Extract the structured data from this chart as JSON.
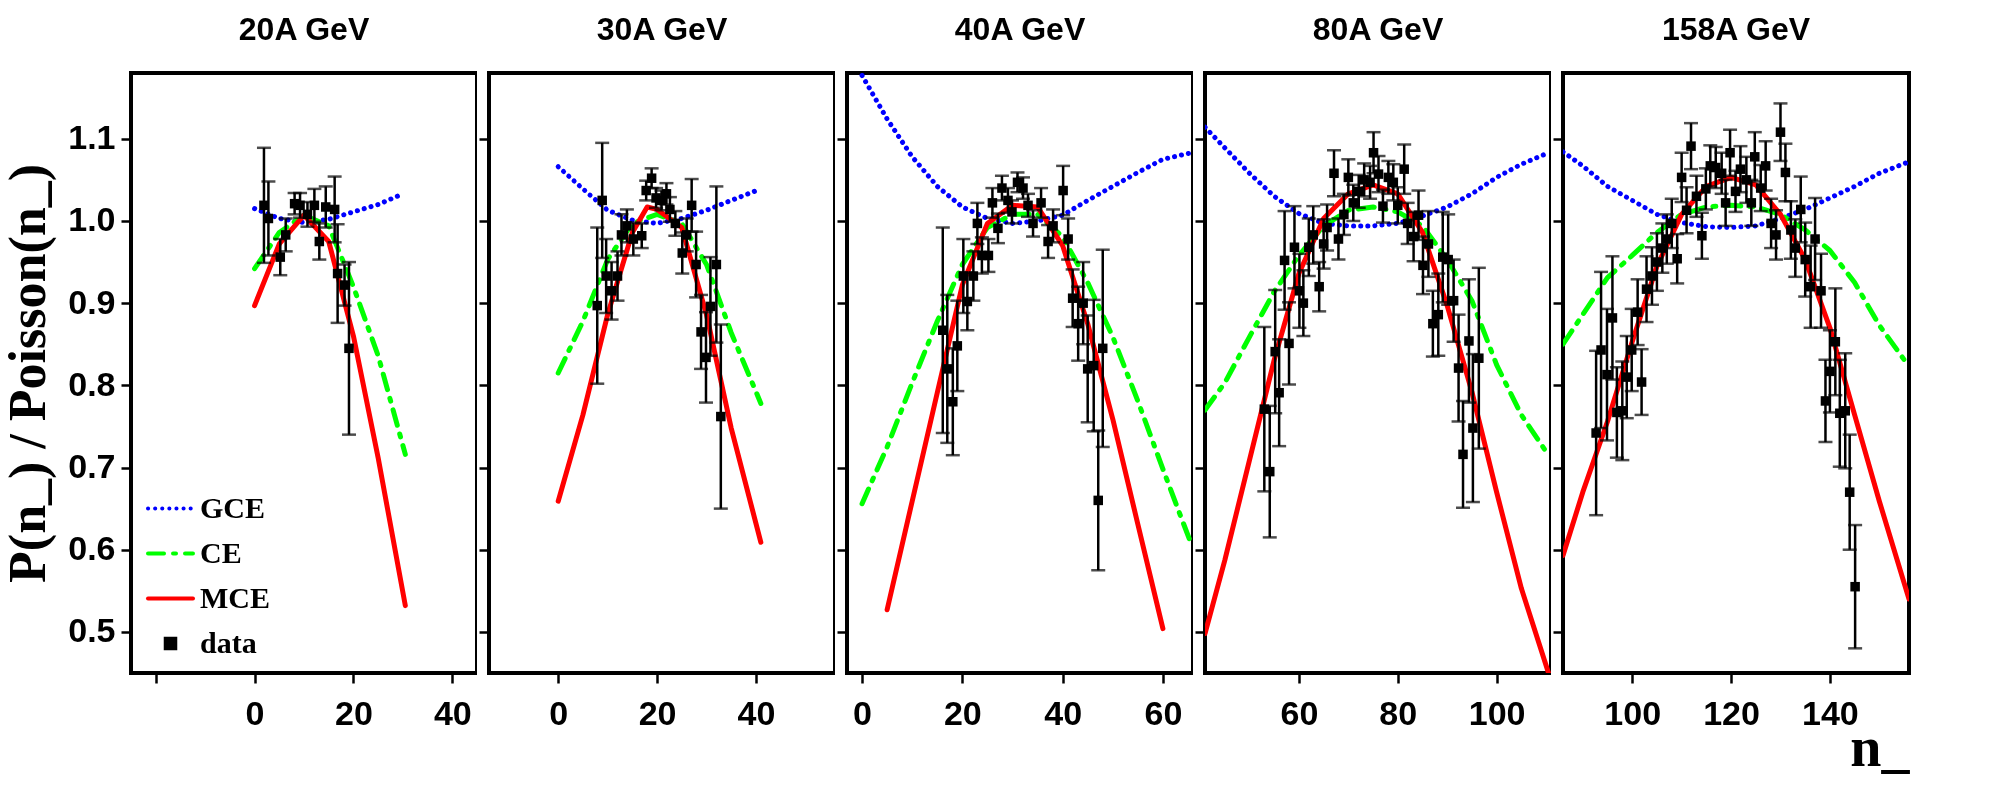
{
  "chart_data": [
    {
      "type": "line",
      "title": "20A GeV",
      "ylabel": "P(n_) / Poisson(n_)",
      "xlim": [
        -25,
        45
      ],
      "xticks": [
        {
          "value": -20,
          "label": null
        },
        0,
        20,
        40
      ],
      "ylim": [
        0.45,
        1.18
      ],
      "yticks": [
        0.5,
        0.6,
        0.7,
        0.8,
        0.9,
        {
          "value": 1.0,
          "label": "1.0"
        },
        1.1
      ],
      "grid": false,
      "legend": "bottom left",
      "series": [
        {
          "name": "GCE",
          "color": "#0000ff",
          "line_style": "dotted",
          "x": [
            0,
            5,
            10,
            15,
            20,
            25,
            30
          ],
          "values": [
            1.015,
            1.003,
            0.998,
            1.002,
            1.011,
            1.02,
            1.033
          ]
        },
        {
          "name": "CE",
          "color": "#00ff00",
          "line_style": "dashed",
          "x": [
            0,
            5,
            10,
            15,
            20,
            25,
            30.5
          ],
          "values": [
            0.942,
            0.986,
            1.007,
            0.994,
            0.92,
            0.836,
            0.716
          ]
        },
        {
          "name": "MCE",
          "color": "#ff0000",
          "line_style": "solid",
          "x": [
            0,
            5,
            10,
            15,
            20,
            25,
            30.5
          ],
          "values": [
            0.897,
            0.972,
            1.007,
            0.975,
            0.86,
            0.712,
            0.532
          ]
        },
        {
          "name": "data",
          "type": "scatter",
          "marker": "square",
          "color": "#000000",
          "x": [
            1.9,
            2.8,
            5.2,
            6.3,
            8.1,
            9.2,
            10.7,
            12.1,
            13.1,
            14.4,
            16.2,
            16.8,
            18.2,
            19.1
          ],
          "values": [
            1.019,
            1.003,
            0.956,
            0.983,
            1.021,
            1.019,
            1.008,
            1.019,
            0.975,
            1.017,
            1.014,
            0.936,
            0.922,
            0.845
          ],
          "errors": [
            0.07,
            0.045,
            0.022,
            0.02,
            0.013,
            0.015,
            0.015,
            0.02,
            0.022,
            0.025,
            0.04,
            0.06,
            0.025,
            0.105
          ]
        }
      ]
    },
    {
      "type": "line",
      "title": "30A GeV",
      "xlim": [
        -14,
        56
      ],
      "xticks": [
        0,
        20,
        40
      ],
      "ylim": [
        0.45,
        1.18
      ],
      "yticks": [
        0.5,
        0.6,
        0.7,
        0.8,
        0.9,
        1,
        1.1
      ],
      "tick_labels": "x",
      "grid": false,
      "series": [
        {
          "color": "#0000ff",
          "line_style": "dotted",
          "x": [
            0,
            5,
            10,
            15,
            20,
            25,
            30,
            35,
            41
          ],
          "values": [
            1.066,
            1.039,
            1.013,
            1.001,
            0.997,
            1.003,
            1.013,
            1.025,
            1.039
          ]
        },
        {
          "color": "#00ff00",
          "line_style": "dashed",
          "x": [
            0,
            5,
            10,
            15,
            20,
            25,
            30,
            35,
            41
          ],
          "values": [
            0.815,
            0.878,
            0.953,
            0.997,
            1.008,
            0.997,
            0.947,
            0.864,
            0.778
          ]
        },
        {
          "color": "#ff0000",
          "line_style": "solid",
          "x": [
            0,
            5,
            10,
            15,
            18,
            20,
            25,
            30,
            35,
            41
          ],
          "values": [
            0.659,
            0.764,
            0.886,
            0.986,
            1.017,
            1.014,
            0.992,
            0.886,
            0.748,
            0.609
          ]
        },
        {
          "type": "scatter",
          "marker": "square",
          "color": "#000000",
          "x": [
            7.9,
            8.9,
            9.7,
            10.8,
            12.0,
            12.8,
            13.9,
            15.2,
            16.9,
            17.8,
            18.9,
            19.8,
            20.9,
            21.9,
            22.6,
            23.7,
            25.1,
            26.0,
            27.0,
            27.9,
            28.9,
            29.9,
            30.8,
            32.0,
            32.9
          ],
          "values": [
            0.897,
            1.025,
            0.933,
            0.915,
            0.933,
            0.983,
            0.994,
            0.978,
            0.982,
            1.037,
            1.052,
            1.028,
            1.025,
            1.033,
            1.014,
            0.997,
            0.961,
            0.983,
            1.019,
            0.947,
            0.865,
            0.834,
            0.896,
            0.947,
            0.762
          ],
          "errors": [
            0.095,
            0.07,
            0.045,
            0.035,
            0.03,
            0.025,
            0.02,
            0.02,
            0.015,
            0.012,
            0.012,
            0.012,
            0.012,
            0.013,
            0.015,
            0.015,
            0.025,
            0.02,
            0.032,
            0.04,
            0.045,
            0.055,
            0.06,
            0.095,
            0.112
          ]
        }
      ]
    },
    {
      "type": "line",
      "title": "40A GeV",
      "xlim": [
        -3,
        66
      ],
      "xticks": [
        0,
        20,
        40,
        60
      ],
      "ylim": [
        0.45,
        1.18
      ],
      "yticks": [
        0.5,
        0.6,
        0.7,
        0.8,
        0.9,
        1,
        1.1
      ],
      "tick_labels": "x",
      "grid": false,
      "series": [
        {
          "color": "#0000ff",
          "line_style": "dotted",
          "x": [
            0,
            5,
            10,
            15,
            20,
            25,
            30,
            35,
            40,
            45,
            50,
            55,
            60,
            65.7
          ],
          "values": [
            1.177,
            1.124,
            1.078,
            1.042,
            1.017,
            1.003,
            0.997,
            1.0,
            1.007,
            1.025,
            1.042,
            1.059,
            1.075,
            1.083
          ]
        },
        {
          "color": "#00ff00",
          "line_style": "dashed",
          "x": [
            0,
            5,
            10,
            15,
            20,
            25,
            30,
            35,
            40,
            45,
            50,
            55,
            60,
            65.7
          ],
          "values": [
            0.656,
            0.725,
            0.803,
            0.878,
            0.947,
            0.992,
            1.008,
            1.008,
            0.981,
            0.925,
            0.859,
            0.781,
            0.698,
            0.606
          ]
        },
        {
          "color": "#ff0000",
          "line_style": "solid",
          "x": [
            5,
            10,
            15,
            20,
            25,
            30,
            35,
            40,
            45,
            50,
            55,
            60
          ],
          "values": [
            0.527,
            0.659,
            0.791,
            0.922,
            0.997,
            1.019,
            1.017,
            0.97,
            0.875,
            0.759,
            0.631,
            0.504
          ]
        },
        {
          "type": "scatter",
          "marker": "square",
          "color": "#000000",
          "x": [
            16.1,
            17.0,
            18.1,
            19.0,
            20.2,
            21.0,
            22.2,
            23.0,
            23.9,
            25.2,
            26.0,
            27.1,
            27.9,
            29.1,
            29.9,
            31.0,
            32.1,
            33.1,
            34.1,
            35.7,
            37.1,
            38.1,
            40.1,
            41.1,
            42.0,
            43.1,
            44.1,
            45.0,
            46.2,
            47.1,
            48.0
          ],
          "values": [
            0.867,
            0.82,
            0.78,
            0.848,
            0.933,
            0.902,
            0.933,
            0.997,
            0.958,
            0.958,
            1.022,
            0.991,
            1.04,
            1.025,
            1.011,
            1.047,
            1.04,
            1.019,
            0.997,
            1.022,
            0.975,
            0.994,
            1.037,
            0.978,
            0.906,
            0.875,
            0.9,
            0.82,
            0.824,
            0.66,
            0.845
          ],
          "errors": [
            0.125,
            0.09,
            0.065,
            0.055,
            0.045,
            0.035,
            0.03,
            0.025,
            0.022,
            0.02,
            0.018,
            0.018,
            0.015,
            0.015,
            0.014,
            0.012,
            0.013,
            0.014,
            0.016,
            0.018,
            0.02,
            0.02,
            0.03,
            0.025,
            0.035,
            0.045,
            0.05,
            0.065,
            0.08,
            0.085,
            0.12
          ]
        }
      ]
    },
    {
      "type": "line",
      "title": "80A GeV",
      "xlim": [
        41,
        111
      ],
      "xticks": [
        60,
        80,
        100
      ],
      "ylim": [
        0.45,
        1.18
      ],
      "yticks": [
        0.5,
        0.6,
        0.7,
        0.8,
        0.9,
        1,
        1.1
      ],
      "tick_labels": "x",
      "grid": false,
      "series": [
        {
          "color": "#0000ff",
          "line_style": "dotted",
          "x": [
            41,
            45,
            50,
            55,
            60,
            65,
            70,
            75,
            80,
            85,
            90,
            95,
            100,
            105,
            110.5
          ],
          "values": [
            1.114,
            1.089,
            1.058,
            1.03,
            1.009,
            0.997,
            0.994,
            0.994,
            0.997,
            1.006,
            1.017,
            1.033,
            1.053,
            1.069,
            1.083
          ]
        },
        {
          "color": "#00ff00",
          "line_style": "dashed",
          "x": [
            41,
            45,
            50,
            55,
            60,
            65,
            70,
            75,
            80,
            85,
            90,
            95,
            100,
            105,
            110.5
          ],
          "values": [
            0.77,
            0.803,
            0.859,
            0.914,
            0.958,
            0.994,
            1.013,
            1.017,
            1.011,
            0.994,
            0.953,
            0.903,
            0.825,
            0.764,
            0.715
          ]
        },
        {
          "color": "#ff0000",
          "line_style": "solid",
          "x": [
            41,
            45,
            50,
            55,
            60,
            65,
            70,
            75,
            80,
            85,
            90,
            95,
            100,
            105,
            110.5
          ],
          "values": [
            0.498,
            0.587,
            0.709,
            0.831,
            0.936,
            1.003,
            1.033,
            1.044,
            1.033,
            0.986,
            0.897,
            0.792,
            0.67,
            0.553,
            0.45
          ]
        },
        {
          "type": "scatter",
          "marker": "square",
          "color": "#000000",
          "x": [
            53.0,
            54.1,
            55.2,
            56.0,
            57.1,
            58.0,
            59.1,
            60.1,
            60.9,
            62.0,
            62.9,
            64.1,
            65.0,
            65.7,
            67.1,
            68.0,
            69.1,
            70.0,
            71.0,
            72.1,
            73.2,
            74.4,
            75.1,
            76.1,
            77.0,
            78.1,
            79.1,
            80.0,
            81.3,
            82.0,
            83.2,
            84.2,
            85.1,
            86.2,
            87.1,
            88.2,
            89.1,
            90.2,
            91.3,
            92.3,
            93.2,
            94.4,
            95.2,
            96.4
          ],
          "values": [
            0.771,
            0.695,
            0.841,
            0.791,
            0.952,
            0.851,
            0.968,
            0.915,
            0.9,
            0.968,
            0.983,
            0.92,
            0.972,
            0.992,
            1.058,
            0.978,
            1.008,
            1.053,
            1.022,
            1.036,
            1.05,
            1.047,
            1.083,
            1.057,
            1.018,
            1.053,
            1.047,
            1.019,
            1.063,
            0.997,
            0.981,
            1.007,
            0.946,
            0.972,
            0.875,
            0.886,
            0.956,
            0.953,
            0.903,
            0.821,
            0.716,
            0.854,
            0.748,
            0.833
          ],
          "errors": [
            0.1,
            0.08,
            0.075,
            0.065,
            0.06,
            0.05,
            0.05,
            0.045,
            0.04,
            0.035,
            0.035,
            0.03,
            0.03,
            0.028,
            0.028,
            0.025,
            0.025,
            0.022,
            0.022,
            0.02,
            0.02,
            0.02,
            0.025,
            0.022,
            0.02,
            0.02,
            0.022,
            0.022,
            0.03,
            0.025,
            0.03,
            0.03,
            0.035,
            0.04,
            0.04,
            0.05,
            0.055,
            0.055,
            0.05,
            0.065,
            0.065,
            0.075,
            0.09,
            0.11
          ]
        }
      ]
    },
    {
      "type": "line",
      "title": "158A GeV",
      "xlabel": "n_",
      "xlim": [
        86,
        156
      ],
      "xticks": [
        100,
        120,
        140
      ],
      "ylim": [
        0.45,
        1.18
      ],
      "yticks": [
        0.5,
        0.6,
        0.7,
        0.8,
        0.9,
        1,
        1.1
      ],
      "tick_labels": "x",
      "grid": false,
      "series": [
        {
          "color": "#0000ff",
          "line_style": "dotted",
          "x": [
            86,
            90,
            95,
            100,
            105,
            110,
            115,
            120,
            125,
            130,
            135,
            140,
            145,
            150,
            156
          ],
          "values": [
            1.084,
            1.067,
            1.042,
            1.025,
            1.008,
            0.998,
            0.993,
            0.992,
            0.994,
            1.003,
            1.014,
            1.028,
            1.042,
            1.058,
            1.072
          ]
        },
        {
          "color": "#00ff00",
          "line_style": "dashed",
          "x": [
            86,
            90,
            95,
            100,
            105,
            110,
            115,
            120,
            125,
            130,
            135,
            140,
            145,
            150,
            156
          ],
          "values": [
            0.85,
            0.886,
            0.931,
            0.958,
            0.986,
            1.008,
            1.017,
            1.019,
            1.017,
            1.008,
            0.989,
            0.964,
            0.925,
            0.873,
            0.823
          ]
        },
        {
          "color": "#ff0000",
          "line_style": "solid",
          "x": [
            86,
            90,
            95,
            100,
            105,
            110,
            115,
            120,
            125,
            130,
            135,
            140,
            145,
            150,
            156
          ],
          "values": [
            0.593,
            0.67,
            0.756,
            0.853,
            0.945,
            1.008,
            1.042,
            1.053,
            1.044,
            1.008,
            0.953,
            0.87,
            0.764,
            0.659,
            0.54
          ]
        },
        {
          "type": "scatter",
          "marker": "square",
          "color": "#000000",
          "x": [
            92.7,
            93.7,
            94.9,
            96.0,
            96.9,
            98.0,
            98.9,
            99.9,
            101.1,
            101.9,
            102.9,
            104.0,
            105.0,
            106.1,
            107.0,
            108.0,
            109.1,
            110.0,
            111.0,
            111.9,
            113.0,
            114.1,
            114.9,
            115.8,
            116.9,
            118.1,
            118.9,
            119.8,
            120.9,
            121.9,
            123.1,
            124.1,
            124.8,
            126.0,
            127.0,
            128.1,
            129.1,
            130.0,
            131.0,
            132.1,
            133.0,
            134.1,
            135.0,
            136.1,
            137.0,
            138.2,
            139.1,
            140.0,
            141.1,
            142.0,
            143.1,
            144.0,
            145.1
          ],
          "values": [
            0.742,
            0.843,
            0.813,
            0.882,
            0.767,
            0.769,
            0.81,
            0.843,
            0.889,
            0.804,
            0.917,
            0.933,
            0.95,
            0.967,
            0.978,
            0.997,
            0.954,
            1.053,
            1.013,
            1.091,
            1.03,
            0.982,
            1.039,
            1.067,
            1.065,
            1.058,
            1.022,
            1.083,
            1.036,
            1.063,
            1.05,
            1.022,
            1.078,
            1.04,
            1.067,
            0.997,
            0.983,
            1.108,
            1.059,
            0.989,
            0.967,
            1.014,
            0.953,
            0.92,
            0.978,
            0.915,
            0.781,
            0.817,
            0.853,
            0.766,
            0.769,
            0.67,
            0.555
          ],
          "errors": [
            0.1,
            0.095,
            0.08,
            0.075,
            0.055,
            0.06,
            0.05,
            0.05,
            0.04,
            0.04,
            0.04,
            0.035,
            0.035,
            0.03,
            0.03,
            0.03,
            0.03,
            0.03,
            0.028,
            0.028,
            0.025,
            0.028,
            0.025,
            0.025,
            0.025,
            0.025,
            0.028,
            0.028,
            0.025,
            0.028,
            0.028,
            0.028,
            0.03,
            0.028,
            0.03,
            0.03,
            0.03,
            0.035,
            0.035,
            0.035,
            0.035,
            0.04,
            0.045,
            0.05,
            0.05,
            0.045,
            0.05,
            0.05,
            0.065,
            0.065,
            0.07,
            0.07,
            0.075
          ]
        }
      ]
    }
  ]
}
